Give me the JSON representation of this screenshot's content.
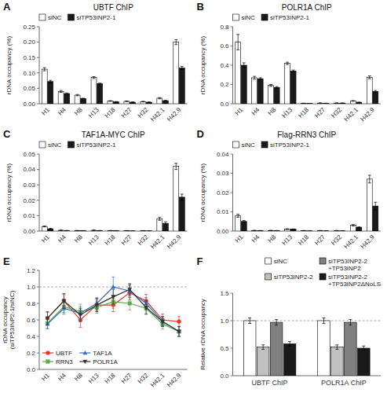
{
  "chart_data": [
    {
      "type": "bar",
      "title": "UBTF ChIP",
      "ylabel": "rDNA occupancy (%)",
      "annotations": [
        "A"
      ],
      "categories": [
        "H1",
        "H4",
        "H8",
        "H13",
        "H18",
        "H27",
        "H32",
        "H42.1",
        "H42.9"
      ],
      "series": [
        {
          "name": "siNC",
          "color": "#ffffff",
          "values": [
            0.112,
            0.04,
            0.028,
            0.085,
            0.009,
            0.008,
            0.007,
            0.018,
            0.2
          ],
          "errors": [
            0.005,
            0.003,
            0.002,
            0.003,
            0.001,
            0.001,
            0.001,
            0.002,
            0.008
          ]
        },
        {
          "name": "siTP53INP2-1",
          "color": "#1a1a1a",
          "values": [
            0.072,
            0.033,
            0.017,
            0.065,
            0.006,
            0.005,
            0.005,
            0.01,
            0.116
          ],
          "errors": [
            0.004,
            0.002,
            0.001,
            0.002,
            0.001,
            0.001,
            0.001,
            0.001,
            0.005
          ]
        }
      ],
      "ylim": [
        0,
        0.25
      ],
      "yticks": [
        {
          "value": 0,
          "label": "0.00"
        },
        0.05,
        {
          "value": 0.1,
          "label": "0.10"
        },
        0.15,
        {
          "value": 0.2,
          "label": "0.20"
        },
        0.25
      ],
      "legend": "upper left",
      "grid": false
    },
    {
      "type": "bar",
      "title": "POLR1A ChIP",
      "ylabel": "rDNA occupancy (%)",
      "annotations": [
        "B"
      ],
      "categories": [
        "H1",
        "H4",
        "H8",
        "H13",
        "H18",
        "H27",
        "H32",
        "H42.1",
        "H42.9"
      ],
      "series": [
        {
          "name": "siNC",
          "color": "#ffffff",
          "values": [
            0.64,
            0.27,
            0.19,
            0.42,
            0.005,
            0.007,
            0.007,
            0.03,
            0.275
          ],
          "errors": [
            0.08,
            0.015,
            0.01,
            0.012,
            0.001,
            0.001,
            0.001,
            0.003,
            0.015
          ]
        },
        {
          "name": "siTP53INP2-1",
          "color": "#1a1a1a",
          "values": [
            0.4,
            0.26,
            0.17,
            0.34,
            0.003,
            0.005,
            0.007,
            0.015,
            0.128
          ],
          "errors": [
            0.025,
            0.01,
            0.008,
            0.01,
            0.001,
            0.001,
            0.001,
            0.002,
            0.01
          ]
        }
      ],
      "ylim": [
        0,
        0.8
      ],
      "yticks": [
        {
          "value": 0,
          "label": "0.0"
        },
        0.2,
        0.4,
        0.6,
        0.8
      ],
      "legend": "upper left",
      "grid": false
    },
    {
      "type": "bar",
      "title": "TAF1A-MYC ChIP",
      "ylabel": "rDNA occupancy (%)",
      "annotations": [
        "C"
      ],
      "categories": [
        "H1",
        "H4",
        "H8",
        "H13",
        "H18",
        "H27",
        "H32",
        "H42.1",
        "H42.9"
      ],
      "series": [
        {
          "name": "siNC",
          "color": "#ffffff",
          "values": [
            0.003,
            0.0005,
            0.0003,
            0.0005,
            0.0003,
            0.0002,
            0.0002,
            0.008,
            0.042
          ],
          "errors": [
            0.0003,
            0.0001,
            0.0001,
            0.0001,
            0.0001,
            0.0001,
            0.0001,
            0.001,
            0.002
          ]
        },
        {
          "name": "siTP53INP2-1",
          "color": "#1a1a1a",
          "values": [
            0.0015,
            0.0003,
            0.0002,
            0.0003,
            0.0002,
            0.0001,
            0.0001,
            0.005,
            0.022
          ],
          "errors": [
            0.0002,
            0.0001,
            0.0001,
            0.0001,
            0.0001,
            0.0001,
            0.0001,
            0.001,
            0.002
          ]
        }
      ],
      "ylim": [
        0,
        0.05
      ],
      "yticks": [
        {
          "value": 0,
          "label": "0.00"
        },
        0.01,
        0.02,
        0.03,
        0.04,
        0.05
      ],
      "legend": "upper left",
      "grid": false
    },
    {
      "type": "bar",
      "title": "Flag-RRN3 ChIP",
      "ylabel": "rDNA occupancy (%)",
      "annotations": [
        "D"
      ],
      "categories": [
        "H1",
        "H4",
        "H8",
        "H13",
        "H18",
        "H27",
        "H32",
        "H42.1",
        "H42.9"
      ],
      "series": [
        {
          "name": "siNC",
          "color": "#ffffff",
          "values": [
            0.008,
            0.0003,
            0.0003,
            0.001,
            0.0002,
            0.0002,
            0.0002,
            0.003,
            0.027
          ],
          "errors": [
            0.0008,
            0.0001,
            0.0001,
            0.0002,
            0.0001,
            0.0001,
            0.0001,
            0.0004,
            0.002
          ]
        },
        {
          "name": "siTP53INP2-1",
          "color": "#1a1a1a",
          "values": [
            0.005,
            0.0002,
            0.0002,
            0.001,
            0.0001,
            0.0001,
            0.0001,
            0.002,
            0.013
          ],
          "errors": [
            0.0005,
            0.0001,
            0.0001,
            0.0001,
            0.0001,
            0.0001,
            0.0001,
            0.0002,
            0.002
          ]
        }
      ],
      "ylim": [
        0,
        0.04
      ],
      "yticks": [
        {
          "value": 0,
          "label": "0.00"
        },
        0.01,
        0.02,
        0.03,
        0.04
      ],
      "legend": "upper left",
      "grid": false
    },
    {
      "type": "line",
      "ylabel": "rDNA occupancy\n(siTP53INP2-1/siNC)",
      "annotations": [
        "E"
      ],
      "categories": [
        "H1",
        "H4",
        "H8",
        "H13",
        "H18",
        "H27",
        "H32",
        "H42.1",
        "H42.9"
      ],
      "series": [
        {
          "name": "UBTF",
          "color": "#e8392a",
          "marker": "circle",
          "values": [
            0.62,
            0.83,
            0.6,
            0.78,
            0.78,
            0.93,
            0.83,
            0.6,
            0.58
          ],
          "errors": [
            0.07,
            0.08,
            0.09,
            0.07,
            0.08,
            0.09,
            0.08,
            0.07,
            0.06
          ]
        },
        {
          "name": "RRN3",
          "color": "#5aac44",
          "marker": "square",
          "values": [
            0.56,
            0.76,
            0.7,
            0.75,
            0.82,
            0.8,
            0.74,
            0.55,
            0.46
          ],
          "errors": [
            0.06,
            0.07,
            0.09,
            0.07,
            0.08,
            0.08,
            0.07,
            0.06,
            0.06
          ]
        },
        {
          "name": "TAF1A",
          "color": "#3a6fc7",
          "marker": "triangle-up",
          "values": [
            0.55,
            0.74,
            0.68,
            0.8,
            1.0,
            0.95,
            0.8,
            0.58,
            0.46
          ],
          "errors": [
            0.06,
            0.07,
            0.08,
            0.07,
            0.12,
            0.08,
            0.07,
            0.06,
            0.06
          ]
        },
        {
          "name": "POLR1A",
          "color": "#333333",
          "marker": "triangle-down",
          "values": [
            0.62,
            0.83,
            0.66,
            0.78,
            0.88,
            0.97,
            0.75,
            0.58,
            0.46
          ],
          "errors": [
            0.08,
            0.09,
            0.08,
            0.08,
            0.09,
            0.07,
            0.08,
            0.06,
            0.06
          ]
        }
      ],
      "hline": 1.0,
      "ylim": [
        0,
        1.2
      ],
      "yticks": [
        {
          "value": 0,
          "label": "0.0"
        },
        0.2,
        0.4,
        0.6,
        0.8,
        {
          "value": 1.0,
          "label": "1.0"
        },
        1.2
      ],
      "legend": "lower left",
      "grid": false
    },
    {
      "type": "bar",
      "ylabel": "Relative rDNA occupancy",
      "annotations": [
        "F"
      ],
      "categories": [
        "UBTF ChIP",
        "POLR1A ChIP"
      ],
      "series": [
        {
          "name": "siNC",
          "color": "#ffffff",
          "values": [
            1.0,
            1.0
          ],
          "errors": [
            0.05,
            0.05
          ]
        },
        {
          "name": "siTP53INP2-2",
          "color": "#c0c0c0",
          "values": [
            0.52,
            0.52
          ],
          "errors": [
            0.04,
            0.04
          ]
        },
        {
          "name": "siTP53INP2-2\n+TP53INP2",
          "color": "#808080",
          "values": [
            0.97,
            0.97
          ],
          "errors": [
            0.05,
            0.05
          ]
        },
        {
          "name": "siTP53INP2-2\n+TP53INP2ΔNoLS",
          "color": "#1a1a1a",
          "values": [
            0.58,
            0.5
          ],
          "errors": [
            0.04,
            0.04
          ]
        }
      ],
      "hline": 1.0,
      "ylim": [
        0,
        1.5
      ],
      "yticks": [
        {
          "value": 0,
          "label": "0.0"
        },
        0.5,
        {
          "value": 1.0,
          "label": "1.0"
        },
        1.5
      ],
      "legend": "upper right",
      "grid": false
    }
  ]
}
